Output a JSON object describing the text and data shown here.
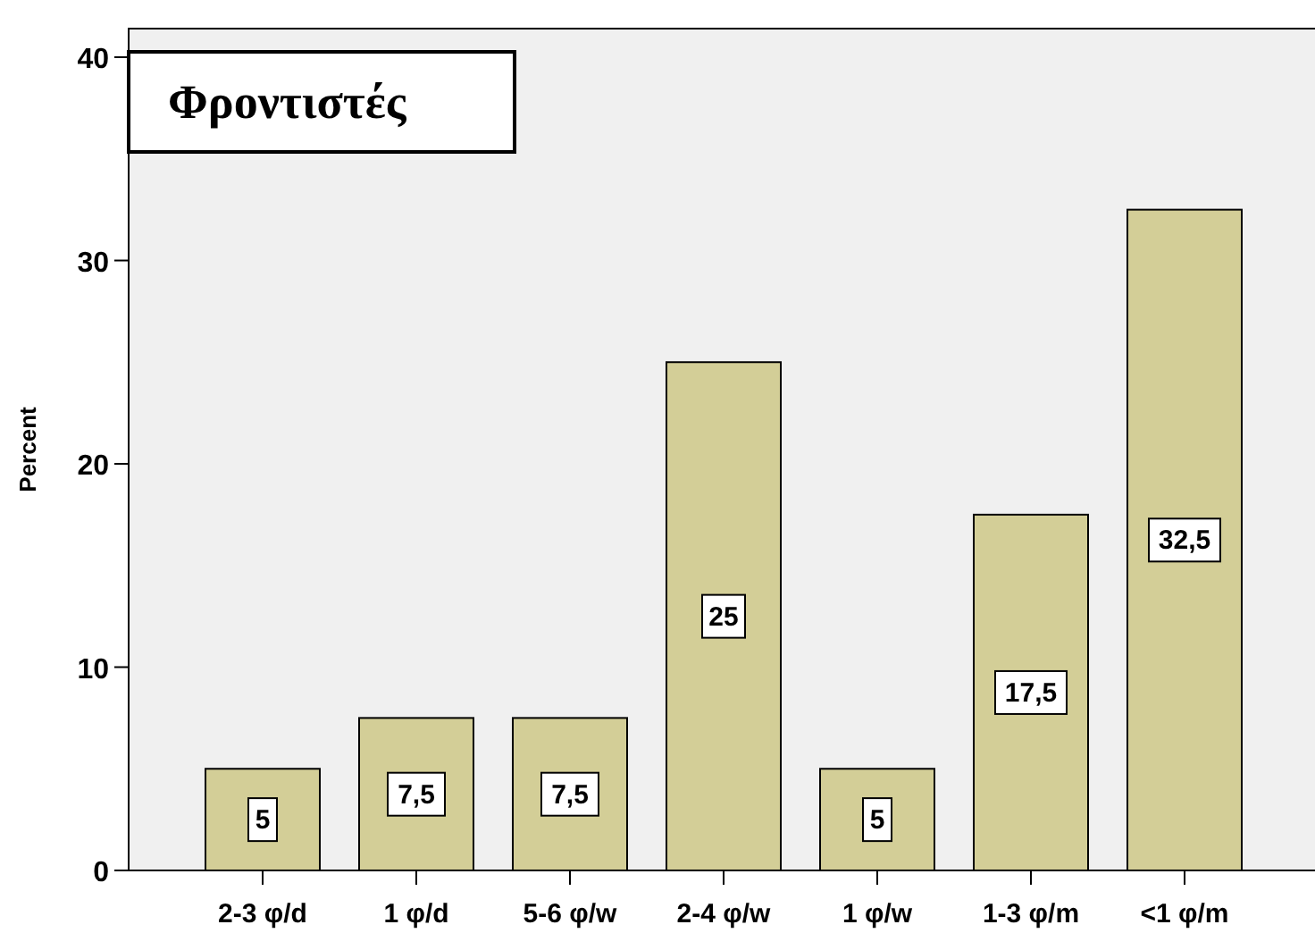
{
  "chart_data": {
    "type": "bar",
    "title": "Φροντιστές",
    "ylabel": "Percent",
    "categories": [
      "2-3 φ/d",
      "1 φ/d",
      "5-6 φ/w",
      "2-4 φ/w",
      "1 φ/w",
      "1-3 φ/m",
      "<1 φ/m"
    ],
    "values": [
      5,
      7.5,
      7.5,
      25,
      5,
      17.5,
      32.5
    ],
    "value_labels": [
      "5",
      "7,5",
      "7,5",
      "25",
      "5",
      "17,5",
      "32,5"
    ],
    "color": "#d3ce97",
    "ylim": [
      0,
      40
    ],
    "yticks": [
      0,
      10,
      20,
      30,
      40
    ],
    "grid": false
  }
}
